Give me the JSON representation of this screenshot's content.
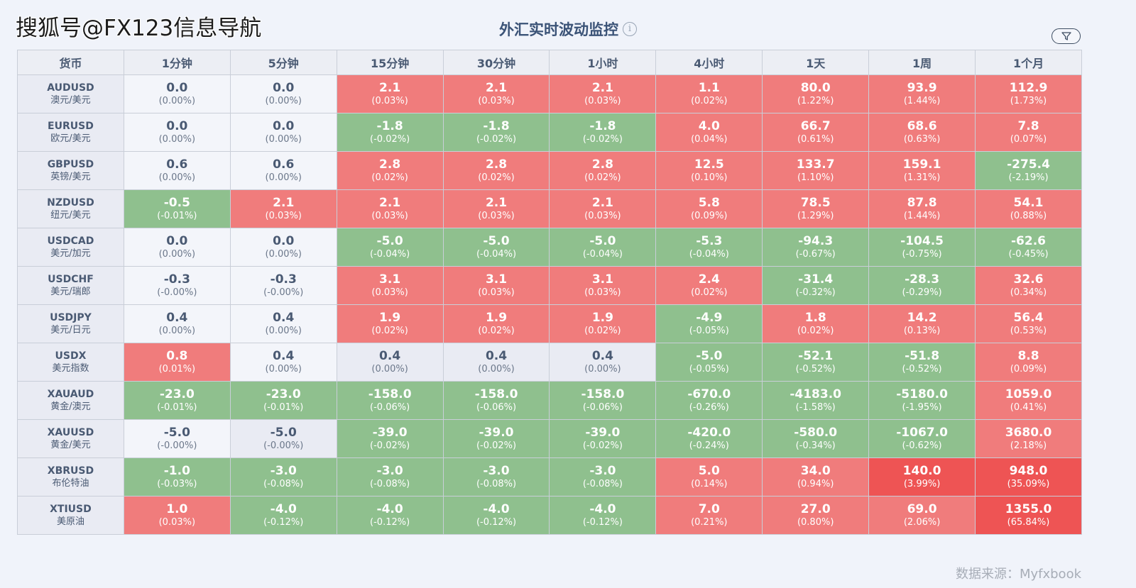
{
  "watermark": "搜狐号@FX123信息导航",
  "title": "外汇实时波动监控",
  "info_icon": "info-icon",
  "filter_icon": "filter-icon",
  "headers": [
    "货币",
    "1分钟",
    "5分钟",
    "15分钟",
    "30分钟",
    "1小时",
    "4小时",
    "1天",
    "1周",
    "1个月"
  ],
  "rows": [
    {
      "code": "AUDUSD",
      "name": "澳元/美元",
      "cells": [
        {
          "v": "0.0",
          "p": "(0.00%)",
          "s": "neu"
        },
        {
          "v": "0.0",
          "p": "(0.00%)",
          "s": "neu"
        },
        {
          "v": "2.1",
          "p": "(0.03%)",
          "s": "up"
        },
        {
          "v": "2.1",
          "p": "(0.03%)",
          "s": "up"
        },
        {
          "v": "2.1",
          "p": "(0.03%)",
          "s": "up"
        },
        {
          "v": "1.1",
          "p": "(0.02%)",
          "s": "up"
        },
        {
          "v": "80.0",
          "p": "(1.22%)",
          "s": "up"
        },
        {
          "v": "93.9",
          "p": "(1.44%)",
          "s": "up"
        },
        {
          "v": "112.9",
          "p": "(1.73%)",
          "s": "up"
        }
      ]
    },
    {
      "code": "EURUSD",
      "name": "欧元/美元",
      "cells": [
        {
          "v": "0.0",
          "p": "(0.00%)",
          "s": "neu"
        },
        {
          "v": "0.0",
          "p": "(0.00%)",
          "s": "neu"
        },
        {
          "v": "-1.8",
          "p": "(-0.02%)",
          "s": "dn"
        },
        {
          "v": "-1.8",
          "p": "(-0.02%)",
          "s": "dn"
        },
        {
          "v": "-1.8",
          "p": "(-0.02%)",
          "s": "dn"
        },
        {
          "v": "4.0",
          "p": "(0.04%)",
          "s": "up"
        },
        {
          "v": "66.7",
          "p": "(0.61%)",
          "s": "up"
        },
        {
          "v": "68.6",
          "p": "(0.63%)",
          "s": "up"
        },
        {
          "v": "7.8",
          "p": "(0.07%)",
          "s": "up"
        }
      ]
    },
    {
      "code": "GBPUSD",
      "name": "英镑/美元",
      "cells": [
        {
          "v": "0.6",
          "p": "(0.00%)",
          "s": "neu"
        },
        {
          "v": "0.6",
          "p": "(0.00%)",
          "s": "neu"
        },
        {
          "v": "2.8",
          "p": "(0.02%)",
          "s": "up"
        },
        {
          "v": "2.8",
          "p": "(0.02%)",
          "s": "up"
        },
        {
          "v": "2.8",
          "p": "(0.02%)",
          "s": "up"
        },
        {
          "v": "12.5",
          "p": "(0.10%)",
          "s": "up"
        },
        {
          "v": "133.7",
          "p": "(1.10%)",
          "s": "up"
        },
        {
          "v": "159.1",
          "p": "(1.31%)",
          "s": "up"
        },
        {
          "v": "-275.4",
          "p": "(-2.19%)",
          "s": "dn"
        }
      ]
    },
    {
      "code": "NZDUSD",
      "name": "纽元/美元",
      "cells": [
        {
          "v": "-0.5",
          "p": "(-0.01%)",
          "s": "dn"
        },
        {
          "v": "2.1",
          "p": "(0.03%)",
          "s": "up"
        },
        {
          "v": "2.1",
          "p": "(0.03%)",
          "s": "up"
        },
        {
          "v": "2.1",
          "p": "(0.03%)",
          "s": "up"
        },
        {
          "v": "2.1",
          "p": "(0.03%)",
          "s": "up"
        },
        {
          "v": "5.8",
          "p": "(0.09%)",
          "s": "up"
        },
        {
          "v": "78.5",
          "p": "(1.29%)",
          "s": "up"
        },
        {
          "v": "87.8",
          "p": "(1.44%)",
          "s": "up"
        },
        {
          "v": "54.1",
          "p": "(0.88%)",
          "s": "up"
        }
      ]
    },
    {
      "code": "USDCAD",
      "name": "美元/加元",
      "cells": [
        {
          "v": "0.0",
          "p": "(0.00%)",
          "s": "neu"
        },
        {
          "v": "0.0",
          "p": "(0.00%)",
          "s": "neu"
        },
        {
          "v": "-5.0",
          "p": "(-0.04%)",
          "s": "dn"
        },
        {
          "v": "-5.0",
          "p": "(-0.04%)",
          "s": "dn"
        },
        {
          "v": "-5.0",
          "p": "(-0.04%)",
          "s": "dn"
        },
        {
          "v": "-5.3",
          "p": "(-0.04%)",
          "s": "dn"
        },
        {
          "v": "-94.3",
          "p": "(-0.67%)",
          "s": "dn"
        },
        {
          "v": "-104.5",
          "p": "(-0.75%)",
          "s": "dn"
        },
        {
          "v": "-62.6",
          "p": "(-0.45%)",
          "s": "dn"
        }
      ]
    },
    {
      "code": "USDCHF",
      "name": "美元/瑞郎",
      "cells": [
        {
          "v": "-0.3",
          "p": "(-0.00%)",
          "s": "neu"
        },
        {
          "v": "-0.3",
          "p": "(-0.00%)",
          "s": "neu"
        },
        {
          "v": "3.1",
          "p": "(0.03%)",
          "s": "up"
        },
        {
          "v": "3.1",
          "p": "(0.03%)",
          "s": "up"
        },
        {
          "v": "3.1",
          "p": "(0.03%)",
          "s": "up"
        },
        {
          "v": "2.4",
          "p": "(0.02%)",
          "s": "up"
        },
        {
          "v": "-31.4",
          "p": "(-0.32%)",
          "s": "dn"
        },
        {
          "v": "-28.3",
          "p": "(-0.29%)",
          "s": "dn"
        },
        {
          "v": "32.6",
          "p": "(0.34%)",
          "s": "up"
        }
      ]
    },
    {
      "code": "USDJPY",
      "name": "美元/日元",
      "cells": [
        {
          "v": "0.4",
          "p": "(0.00%)",
          "s": "neu"
        },
        {
          "v": "0.4",
          "p": "(0.00%)",
          "s": "neu"
        },
        {
          "v": "1.9",
          "p": "(0.02%)",
          "s": "up"
        },
        {
          "v": "1.9",
          "p": "(0.02%)",
          "s": "up"
        },
        {
          "v": "1.9",
          "p": "(0.02%)",
          "s": "up"
        },
        {
          "v": "-4.9",
          "p": "(-0.05%)",
          "s": "dn"
        },
        {
          "v": "1.8",
          "p": "(0.02%)",
          "s": "up"
        },
        {
          "v": "14.2",
          "p": "(0.13%)",
          "s": "up"
        },
        {
          "v": "56.4",
          "p": "(0.53%)",
          "s": "up"
        }
      ]
    },
    {
      "code": "USDX",
      "name": "美元指数",
      "cells": [
        {
          "v": "0.8",
          "p": "(0.01%)",
          "s": "up"
        },
        {
          "v": "0.4",
          "p": "(0.00%)",
          "s": "neu"
        },
        {
          "v": "0.4",
          "p": "(0.00%)",
          "s": "neu2"
        },
        {
          "v": "0.4",
          "p": "(0.00%)",
          "s": "neu2"
        },
        {
          "v": "0.4",
          "p": "(0.00%)",
          "s": "neu2"
        },
        {
          "v": "-5.0",
          "p": "(-0.05%)",
          "s": "dn"
        },
        {
          "v": "-52.1",
          "p": "(-0.52%)",
          "s": "dn"
        },
        {
          "v": "-51.8",
          "p": "(-0.52%)",
          "s": "dn"
        },
        {
          "v": "8.8",
          "p": "(0.09%)",
          "s": "up"
        }
      ]
    },
    {
      "code": "XAUAUD",
      "name": "黄金/澳元",
      "cells": [
        {
          "v": "-23.0",
          "p": "(-0.01%)",
          "s": "dn"
        },
        {
          "v": "-23.0",
          "p": "(-0.01%)",
          "s": "dn"
        },
        {
          "v": "-158.0",
          "p": "(-0.06%)",
          "s": "dn"
        },
        {
          "v": "-158.0",
          "p": "(-0.06%)",
          "s": "dn"
        },
        {
          "v": "-158.0",
          "p": "(-0.06%)",
          "s": "dn"
        },
        {
          "v": "-670.0",
          "p": "(-0.26%)",
          "s": "dn"
        },
        {
          "v": "-4183.0",
          "p": "(-1.58%)",
          "s": "dn"
        },
        {
          "v": "-5180.0",
          "p": "(-1.95%)",
          "s": "dn"
        },
        {
          "v": "1059.0",
          "p": "(0.41%)",
          "s": "up"
        }
      ]
    },
    {
      "code": "XAUUSD",
      "name": "黄金/美元",
      "cells": [
        {
          "v": "-5.0",
          "p": "(-0.00%)",
          "s": "neu"
        },
        {
          "v": "-5.0",
          "p": "(-0.00%)",
          "s": "neu2"
        },
        {
          "v": "-39.0",
          "p": "(-0.02%)",
          "s": "dn"
        },
        {
          "v": "-39.0",
          "p": "(-0.02%)",
          "s": "dn"
        },
        {
          "v": "-39.0",
          "p": "(-0.02%)",
          "s": "dn"
        },
        {
          "v": "-420.0",
          "p": "(-0.24%)",
          "s": "dn"
        },
        {
          "v": "-580.0",
          "p": "(-0.34%)",
          "s": "dn"
        },
        {
          "v": "-1067.0",
          "p": "(-0.62%)",
          "s": "dn"
        },
        {
          "v": "3680.0",
          "p": "(2.18%)",
          "s": "up"
        }
      ]
    },
    {
      "code": "XBRUSD",
      "name": "布伦特油",
      "cells": [
        {
          "v": "-1.0",
          "p": "(-0.03%)",
          "s": "dn"
        },
        {
          "v": "-3.0",
          "p": "(-0.08%)",
          "s": "dn"
        },
        {
          "v": "-3.0",
          "p": "(-0.08%)",
          "s": "dn"
        },
        {
          "v": "-3.0",
          "p": "(-0.08%)",
          "s": "dn"
        },
        {
          "v": "-3.0",
          "p": "(-0.08%)",
          "s": "dn"
        },
        {
          "v": "5.0",
          "p": "(0.14%)",
          "s": "up"
        },
        {
          "v": "34.0",
          "p": "(0.94%)",
          "s": "up"
        },
        {
          "v": "140.0",
          "p": "(3.99%)",
          "s": "up2"
        },
        {
          "v": "948.0",
          "p": "(35.09%)",
          "s": "up2"
        }
      ]
    },
    {
      "code": "XTIUSD",
      "name": "美原油",
      "cells": [
        {
          "v": "1.0",
          "p": "(0.03%)",
          "s": "up"
        },
        {
          "v": "-4.0",
          "p": "(-0.12%)",
          "s": "dn"
        },
        {
          "v": "-4.0",
          "p": "(-0.12%)",
          "s": "dn"
        },
        {
          "v": "-4.0",
          "p": "(-0.12%)",
          "s": "dn"
        },
        {
          "v": "-4.0",
          "p": "(-0.12%)",
          "s": "dn"
        },
        {
          "v": "7.0",
          "p": "(0.21%)",
          "s": "up"
        },
        {
          "v": "27.0",
          "p": "(0.80%)",
          "s": "up"
        },
        {
          "v": "69.0",
          "p": "(2.06%)",
          "s": "up"
        },
        {
          "v": "1355.0",
          "p": "(65.84%)",
          "s": "up2"
        }
      ]
    }
  ],
  "source": "数据来源：Myfxbook",
  "colors": {
    "up": "#f07c7c",
    "up_strong": "#ee5454",
    "down": "#8fc08e",
    "neutral": "#f3f5fa",
    "header": "#eceef4"
  }
}
